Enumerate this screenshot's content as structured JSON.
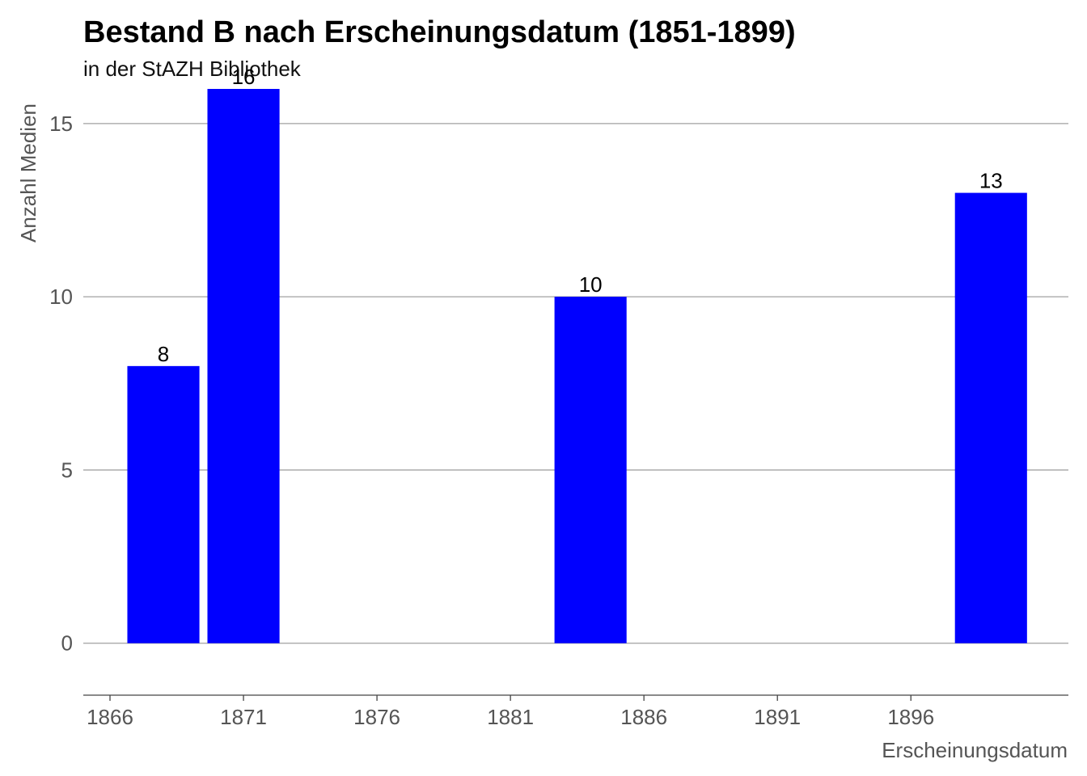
{
  "chart_data": {
    "type": "bar",
    "title": "Bestand B nach Erscheinungsdatum (1851-1899)",
    "subtitle": "in der StAZH Bibliothek",
    "xlabel": "Erscheinungsdatum",
    "ylabel": "Anzahl Medien",
    "x": [
      1868,
      1871,
      1884,
      1899
    ],
    "values": [
      8,
      16,
      10,
      13
    ],
    "data_labels": [
      "8",
      "16",
      "10",
      "13"
    ],
    "bar_width_years": 2.7,
    "xlim": [
      1865,
      1901.9
    ],
    "ylim": [
      -1.5,
      16
    ],
    "x_ticks": [
      1866,
      1871,
      1876,
      1881,
      1886,
      1891,
      1896
    ],
    "x_tick_labels": [
      "1866",
      "1871",
      "1876",
      "1881",
      "1886",
      "1891",
      "1896"
    ],
    "y_ticks": [
      0,
      5,
      10,
      15
    ],
    "y_tick_labels": [
      "0",
      "5",
      "10",
      "15"
    ],
    "grid": true,
    "bar_color": "#0000ff",
    "grid_color": "#a0a0a0"
  }
}
